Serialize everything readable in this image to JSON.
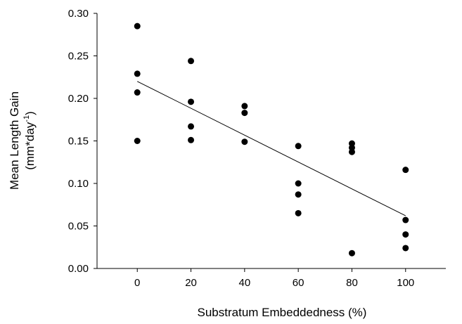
{
  "chart_data": {
    "type": "scatter",
    "title": "",
    "xlabel": "Substratum Embeddedness (%)",
    "ylabel": {
      "line1": "Mean Length Gain",
      "line2_main": "(mm*day",
      "line2_sup": "-1",
      "line2_end": ")"
    },
    "xlim": [
      -15,
      115
    ],
    "ylim": [
      0.0,
      0.3
    ],
    "xticks": [
      0,
      20,
      40,
      60,
      80,
      100
    ],
    "xtick_labels": [
      "0",
      "20",
      "40",
      "60",
      "80",
      "100"
    ],
    "yticks": [
      0.0,
      0.05,
      0.1,
      0.15,
      0.2,
      0.25,
      0.3
    ],
    "ytick_labels": [
      "0.00",
      "0.05",
      "0.10",
      "0.15",
      "0.20",
      "0.25",
      "0.30"
    ],
    "grid": false,
    "legend": false,
    "marker_color": "#000000",
    "series": [
      {
        "points": [
          {
            "x": 0,
            "y": 0.285
          },
          {
            "x": 0,
            "y": 0.229
          },
          {
            "x": 0,
            "y": 0.207
          },
          {
            "x": 0,
            "y": 0.15
          },
          {
            "x": 20,
            "y": 0.244
          },
          {
            "x": 20,
            "y": 0.196
          },
          {
            "x": 20,
            "y": 0.167
          },
          {
            "x": 20,
            "y": 0.151
          },
          {
            "x": 40,
            "y": 0.191
          },
          {
            "x": 40,
            "y": 0.183
          },
          {
            "x": 40,
            "y": 0.149
          },
          {
            "x": 60,
            "y": 0.144
          },
          {
            "x": 60,
            "y": 0.1
          },
          {
            "x": 60,
            "y": 0.087
          },
          {
            "x": 60,
            "y": 0.065
          },
          {
            "x": 80,
            "y": 0.147
          },
          {
            "x": 80,
            "y": 0.142
          },
          {
            "x": 80,
            "y": 0.137
          },
          {
            "x": 80,
            "y": 0.018
          },
          {
            "x": 100,
            "y": 0.116
          },
          {
            "x": 100,
            "y": 0.057
          },
          {
            "x": 100,
            "y": 0.04
          },
          {
            "x": 100,
            "y": 0.024
          }
        ]
      }
    ],
    "regression_line": {
      "x": [
        0,
        100
      ],
      "y": [
        0.22,
        0.062
      ]
    }
  }
}
